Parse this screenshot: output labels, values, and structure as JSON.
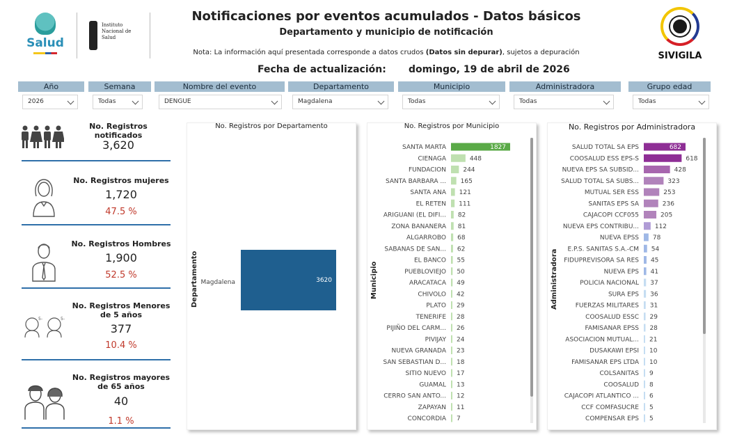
{
  "header": {
    "title": "Notificaciones por eventos acumulados - Datos básicos",
    "subtitle": "Departamento y municipio de notificación",
    "nota_prefix": "Nota: La información aquí presentada corresponde a datos crudos ",
    "nota_bold": "(Datos sin depurar)",
    "nota_suffix": ", sujetos a depuración",
    "fecha_label": "Fecha de actualización:",
    "fecha_value": "domingo, 19 de abril de 2026"
  },
  "logos": {
    "salud": "Salud",
    "ins": [
      "Instituto",
      "Nacional de",
      "Salud"
    ],
    "sivigila": "SIVIGILA"
  },
  "filters": [
    {
      "label": "Año",
      "value": "2026"
    },
    {
      "label": "Semana",
      "value": "Todas"
    },
    {
      "label": "Nombre del evento",
      "value": "DENGUE"
    },
    {
      "label": "Departamento",
      "value": "Magdalena"
    },
    {
      "label": "Municipio",
      "value": "Todas"
    },
    {
      "label": "Administradora",
      "value": "Todas"
    },
    {
      "label": "Grupo edad",
      "value": "Todas"
    }
  ],
  "kpis": {
    "total": {
      "label": "No. Registros notificados",
      "value": "3,620"
    },
    "mujeres": {
      "label": "No. Registros mujeres",
      "value": "1,720",
      "pct": "47.5 %"
    },
    "hombres": {
      "label": "No. Registros Hombres",
      "value": "1,900",
      "pct": "52.5 %"
    },
    "menores": {
      "label": "No. Registros Menores de 5 años",
      "value": "377",
      "pct": "10.4 %"
    },
    "mayores": {
      "label": "No. Registros mayores de 65 años",
      "value": "40",
      "pct": "1.1 %"
    }
  },
  "colors": {
    "filter_header": "#a3bdd0",
    "kpi_line": "#2e6fa9",
    "pct_red": "#c0392b",
    "depto_bar": "#1f5f8f",
    "muni_top": "#5aaa47",
    "muni_bar": "#bfe0b0",
    "admin_purples": [
      "#8e2e95",
      "#9a47a0",
      "#a766ae",
      "#b183bb",
      "#b09cd6",
      "#9fb8e6",
      "#c5ddf2"
    ]
  },
  "chart_data": [
    {
      "type": "bar",
      "title": "No. Registros por Departamento",
      "ylabel": "Departamento",
      "categories": [
        "Magdalena"
      ],
      "values": [
        3620
      ]
    },
    {
      "type": "bar",
      "title": "No. Registros por Municipio",
      "ylabel": "Municipio",
      "categories": [
        "SANTA MARTA",
        "CIENAGA",
        "FUNDACION",
        "SANTA BARBARA ...",
        "SANTA ANA",
        "EL RETEN",
        "ARIGUANI (EL DIFI...",
        "ZONA BANANERA",
        "ALGARROBO",
        "SABANAS DE SAN...",
        "EL BANCO",
        "PUEBLOVIEJO",
        "ARACATACA",
        "CHIVOLO",
        "PLATO",
        "TENERIFE",
        "PIJIÑO DEL CARM...",
        "PIVIJAY",
        "NUEVA GRANADA",
        "SAN SEBASTIAN D...",
        "SITIO NUEVO",
        "GUAMAL",
        "CERRO SAN ANTO...",
        "ZAPAYAN",
        "CONCORDIA"
      ],
      "values": [
        1827,
        448,
        244,
        165,
        121,
        111,
        82,
        81,
        68,
        62,
        55,
        50,
        49,
        42,
        29,
        28,
        26,
        24,
        23,
        18,
        17,
        13,
        12,
        11,
        7
      ]
    },
    {
      "type": "bar",
      "title": "No. Registros por Administradora",
      "ylabel": "Administradora",
      "categories": [
        "SALUD TOTAL SA EPS",
        "COOSALUD ESS EPS-S",
        "NUEVA EPS SA SUBSID...",
        "SALUD TOTAL SA SUBS...",
        "MUTUAL SER ESS",
        "SANITAS EPS SA",
        "CAJACOPI CCF055",
        "NUEVA EPS CONTRIBU...",
        "NUEVA EPSS",
        "E.P.S. SANITAS S.A.-CM",
        "FIDUPREVISORA SA RES",
        "NUEVA EPS",
        "POLICIA NACIONAL",
        "SURA EPS",
        "FUERZAS MILITARES",
        "COOSALUD ESSC",
        "FAMISANAR EPSS",
        "ASOCIACION MUTUAL...",
        "DUSAKAWI EPSI",
        "FAMISANAR EPS LTDA",
        "COLSANITAS",
        "COOSALUD",
        "CAJACOPI ATLANTICO ...",
        "CCF COMFASUCRE",
        "COMPENSAR EPS"
      ],
      "values": [
        682,
        618,
        428,
        323,
        253,
        236,
        205,
        112,
        78,
        54,
        45,
        41,
        37,
        36,
        31,
        29,
        28,
        21,
        10,
        10,
        9,
        8,
        6,
        5,
        5
      ]
    }
  ]
}
